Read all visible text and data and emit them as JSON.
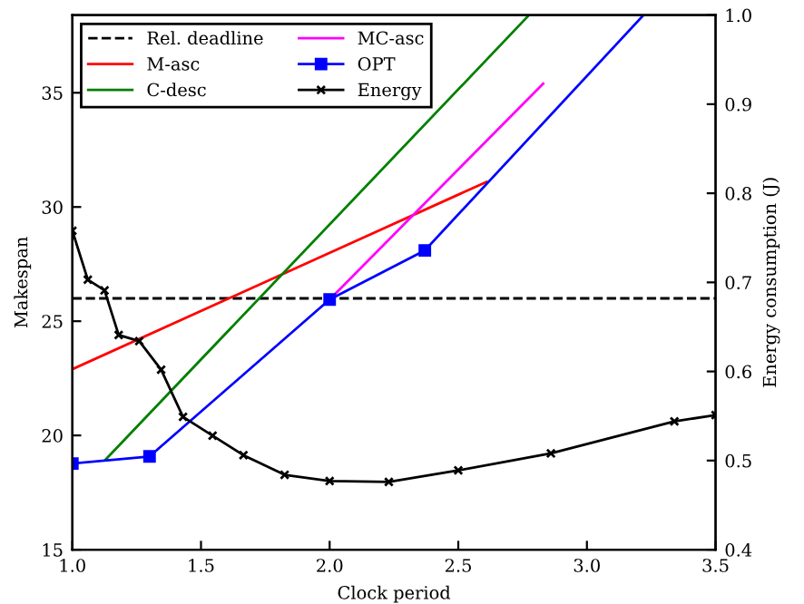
{
  "chart_data": {
    "type": "line",
    "xlabel": "Clock period",
    "ylabel": "Makespan",
    "y2label": "Energy consumption (J)",
    "xlim": [
      1.0,
      3.5
    ],
    "xticks": [
      {
        "value": 1,
        "label": "1.0"
      },
      1.5,
      {
        "value": 2,
        "label": "2.0"
      },
      2.5,
      {
        "value": 3,
        "label": "3.0"
      },
      3.5
    ],
    "ylim": [
      15,
      38.4
    ],
    "yticks": [
      15,
      20,
      25,
      30,
      35
    ],
    "y2lim": [
      0.4,
      1.0
    ],
    "y2ticks": [
      0.4,
      0.5,
      0.6,
      0.7,
      0.8,
      0.9,
      {
        "value": 1,
        "label": "1.0"
      }
    ],
    "legend": "top left",
    "grid": false,
    "ref_lines": [
      {
        "axis": "y",
        "value": 26,
        "label": "Rel. deadline",
        "color": "#000000",
        "line_style": "dashed"
      }
    ],
    "series": [
      {
        "name": "M-asc",
        "color": "#ff0000",
        "x": [
          1.0,
          2.61
        ],
        "values": [
          22.9,
          31.1
        ],
        "marker": "none"
      },
      {
        "name": "C-desc",
        "color": "#008000",
        "x": [
          1.13,
          2.775
        ],
        "values": [
          18.95,
          38.4
        ],
        "marker": "none"
      },
      {
        "name": "MC-asc",
        "color": "#ff00ff",
        "x": [
          2.0,
          2.83
        ],
        "values": [
          25.95,
          35.4
        ],
        "marker": "none"
      },
      {
        "name": "OPT",
        "color": "#0000ff",
        "x": [
          1.0,
          1.3,
          2.0,
          2.37
        ],
        "values": [
          18.77,
          19.08,
          25.95,
          28.1
        ],
        "marker": "square"
      },
      {
        "color": "#0000ff",
        "x": [
          2.37,
          3.22
        ],
        "values": [
          28.1,
          38.4
        ],
        "marker": "none"
      },
      {
        "name": "Energy",
        "color": "#000000",
        "axis": "y2",
        "marker": "cross",
        "x": [
          1.0,
          1.06,
          1.125,
          1.18,
          1.26,
          1.345,
          1.43,
          1.545,
          1.665,
          1.825,
          2.0,
          2.23,
          2.5,
          2.86,
          3.34,
          3.5
        ],
        "values": [
          0.758,
          0.703,
          0.691,
          0.641,
          0.634,
          0.602,
          0.549,
          0.528,
          0.506,
          0.484,
          0.477,
          0.476,
          0.489,
          0.508,
          0.544,
          0.551
        ]
      }
    ]
  }
}
